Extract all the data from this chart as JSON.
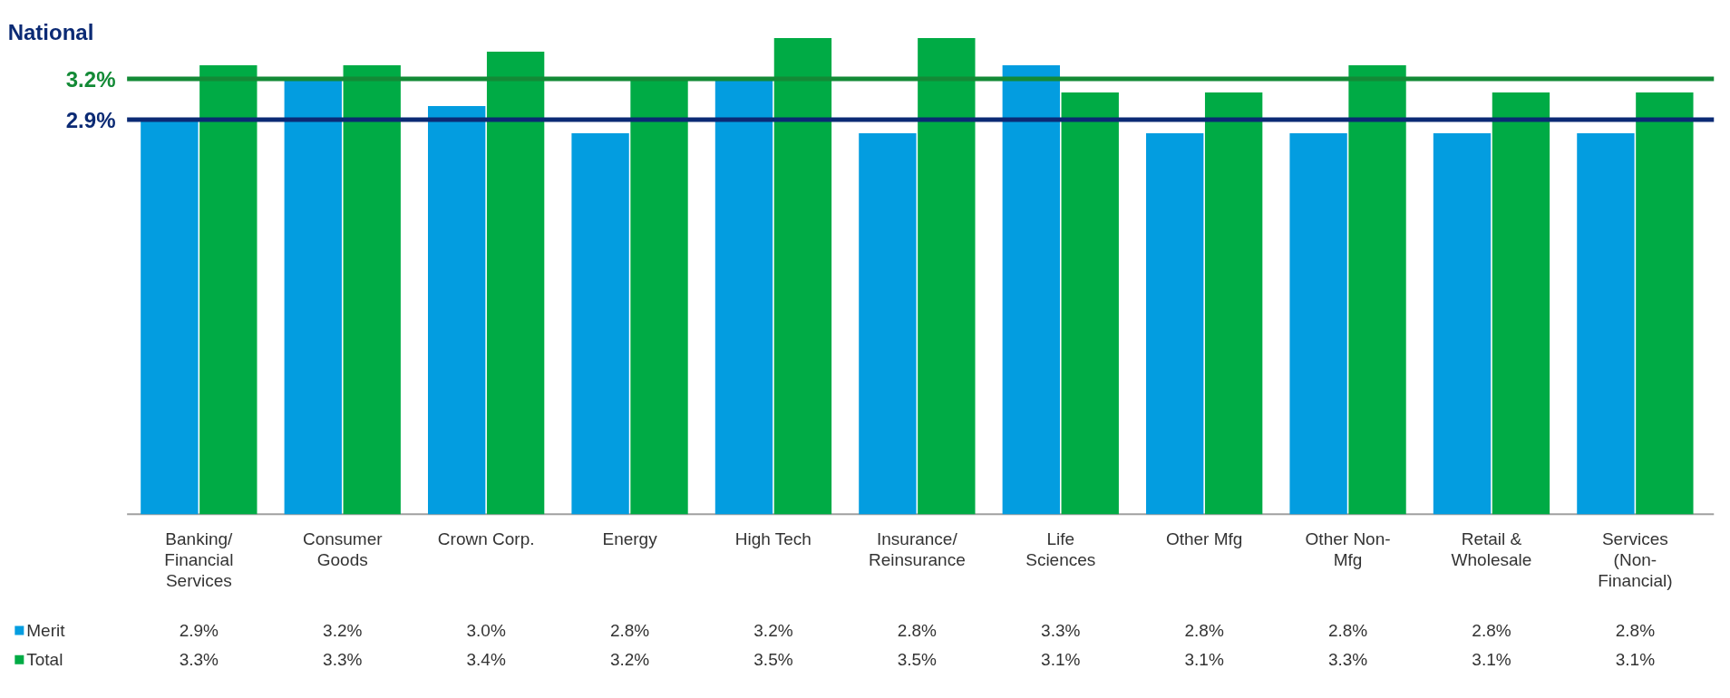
{
  "chart_data": {
    "type": "bar",
    "categories": [
      "Banking/Financial Services",
      "Consumer Goods",
      "Crown Corp.",
      "Energy",
      "High Tech",
      "Insurance/Reinsurance",
      "Life Sciences",
      "Other Mfg",
      "Other Non-Mfg",
      "Retail & Wholesale",
      "Services (Non-Financial)"
    ],
    "series": [
      {
        "name": "Merit",
        "color": "#039de0",
        "values": [
          2.9,
          3.2,
          3.0,
          2.8,
          3.2,
          2.8,
          3.3,
          2.8,
          2.8,
          2.8,
          2.8
        ],
        "value_labels": [
          "2.9%",
          "3.2%",
          "3.0%",
          "2.8%",
          "3.2%",
          "2.8%",
          "3.3%",
          "2.8%",
          "2.8%",
          "2.8%",
          "2.8%"
        ]
      },
      {
        "name": "Total",
        "color": "#00ab45",
        "values": [
          3.3,
          3.3,
          3.4,
          3.2,
          3.5,
          3.5,
          3.1,
          3.1,
          3.3,
          3.1,
          3.1
        ],
        "value_labels": [
          "3.3%",
          "3.3%",
          "3.4%",
          "3.2%",
          "3.5%",
          "3.5%",
          "3.1%",
          "3.1%",
          "3.3%",
          "3.1%",
          "3.1%"
        ]
      }
    ],
    "ref_lines": [
      {
        "axis": "y",
        "value": 3.2,
        "label": "3.2%",
        "color": "#138a36"
      },
      {
        "axis": "y",
        "value": 2.9,
        "label": "2.9%",
        "color": "#0b2a74"
      }
    ],
    "annotations": [
      "National"
    ],
    "legend": "bottom",
    "grid": false
  }
}
